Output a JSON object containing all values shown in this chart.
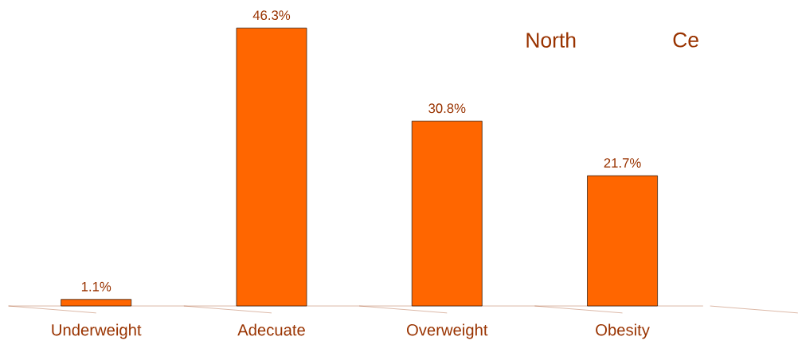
{
  "chart_data": {
    "type": "bar",
    "categories": [
      "Underweight",
      "Adecuate",
      "Overweight",
      "Obesity"
    ],
    "values": [
      1.1,
      46.3,
      30.8,
      21.7
    ],
    "value_labels": [
      "1.1%",
      "46.3%",
      "30.8%",
      "21.7%"
    ],
    "color": "#ff6600",
    "annotations": [
      "North",
      "Ce"
    ]
  }
}
